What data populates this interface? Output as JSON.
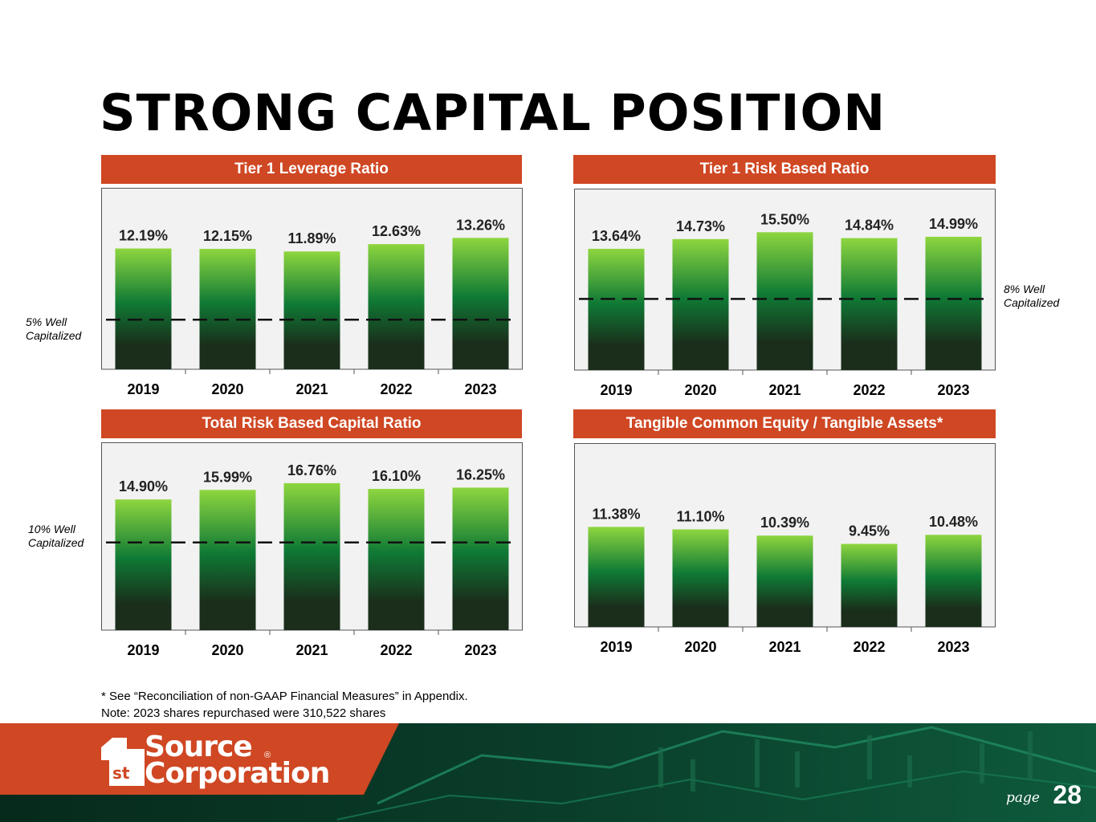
{
  "title": "STRONG CAPITAL POSITION",
  "colors": {
    "header": "#cf4723",
    "bar_top": "#8ed63f",
    "bar_mid": "#0f7a35",
    "bar_bottom": "#1a2e1b",
    "panel_bg": "#f2f2f2"
  },
  "chart_data": [
    {
      "type": "bar",
      "title": "Tier 1 Leverage Ratio",
      "categories": [
        "2019",
        "2020",
        "2021",
        "2022",
        "2023"
      ],
      "values": [
        12.19,
        12.15,
        11.89,
        12.63,
        13.26
      ],
      "labels": [
        "12.19%",
        "12.15%",
        "11.89%",
        "12.63%",
        "13.26%"
      ],
      "threshold": 5,
      "threshold_label": [
        "5% Well",
        "Capitalized"
      ],
      "threshold_side": "left",
      "ylim": [
        0,
        17.5
      ]
    },
    {
      "type": "bar",
      "title": "Tier 1 Risk Based Ratio",
      "categories": [
        "2019",
        "2020",
        "2021",
        "2022",
        "2023"
      ],
      "values": [
        13.64,
        14.73,
        15.5,
        14.84,
        14.99
      ],
      "labels": [
        "13.64%",
        "14.73%",
        "15.50%",
        "14.84%",
        "14.99%"
      ],
      "threshold": 8,
      "threshold_label": [
        "8% Well",
        "Capitalized"
      ],
      "threshold_side": "right",
      "ylim": [
        0,
        19.5
      ]
    },
    {
      "type": "bar",
      "title": "Total Risk Based Capital Ratio",
      "categories": [
        "2019",
        "2020",
        "2021",
        "2022",
        "2023"
      ],
      "values": [
        14.9,
        15.99,
        16.76,
        16.1,
        16.25
      ],
      "labels": [
        "14.90%",
        "15.99%",
        "16.76%",
        "16.10%",
        "16.25%"
      ],
      "threshold": 10,
      "threshold_label": [
        "10% Well",
        "Capitalized"
      ],
      "threshold_side": "left",
      "ylim": [
        0,
        20.5
      ]
    },
    {
      "type": "bar",
      "title": "Tangible Common Equity / Tangible Assets*",
      "categories": [
        "2019",
        "2020",
        "2021",
        "2022",
        "2023"
      ],
      "values": [
        11.38,
        11.1,
        10.39,
        9.45,
        10.48
      ],
      "labels": [
        "11.38%",
        "11.10%",
        "10.39%",
        "9.45%",
        "10.48%"
      ],
      "threshold": null,
      "threshold_label": null,
      "ylim": [
        0,
        20
      ]
    }
  ],
  "footnotes": [
    "* See “Reconciliation of non-GAAP Financial Measures” in Appendix.",
    "Note: 2023 shares repurchased were 310,522 shares"
  ],
  "logo": {
    "line1": "Source",
    "line2": "Corporation",
    "badge": "st",
    "registered": "®"
  },
  "page": {
    "label": "page",
    "number": "28"
  }
}
